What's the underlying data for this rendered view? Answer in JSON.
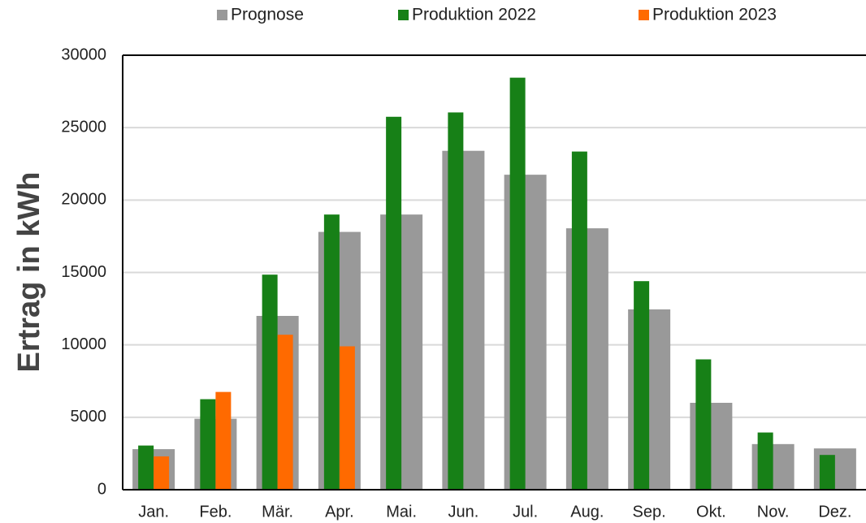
{
  "chart_data": {
    "type": "bar",
    "y_label": "Ertrag in kWh",
    "categories": [
      "Jan.",
      "Feb.",
      "Mär.",
      "Apr.",
      "Mai.",
      "Jun.",
      "Jul.",
      "Aug.",
      "Sep.",
      "Okt.",
      "Nov.",
      "Dez."
    ],
    "series": [
      {
        "name": "Prognose",
        "color": "#999999",
        "values": [
          2800,
          4900,
          12000,
          17800,
          19000,
          23400,
          21750,
          18050,
          12450,
          6000,
          3150,
          2850
        ]
      },
      {
        "name": "Produktion 2022",
        "color": "#178017",
        "values": [
          3050,
          6250,
          14850,
          19000,
          25750,
          26050,
          28450,
          23350,
          14400,
          9000,
          3950,
          2400
        ]
      },
      {
        "name": "Produktion 2023",
        "color": "#ff6a00",
        "values": [
          2300,
          6750,
          10700,
          9900,
          null,
          null,
          null,
          null,
          null,
          null,
          null,
          null
        ]
      }
    ],
    "ylim": [
      0,
      30000
    ],
    "yticks": [
      0,
      5000,
      10000,
      15000,
      20000,
      25000,
      30000
    ],
    "grid": true,
    "legend": "top"
  }
}
